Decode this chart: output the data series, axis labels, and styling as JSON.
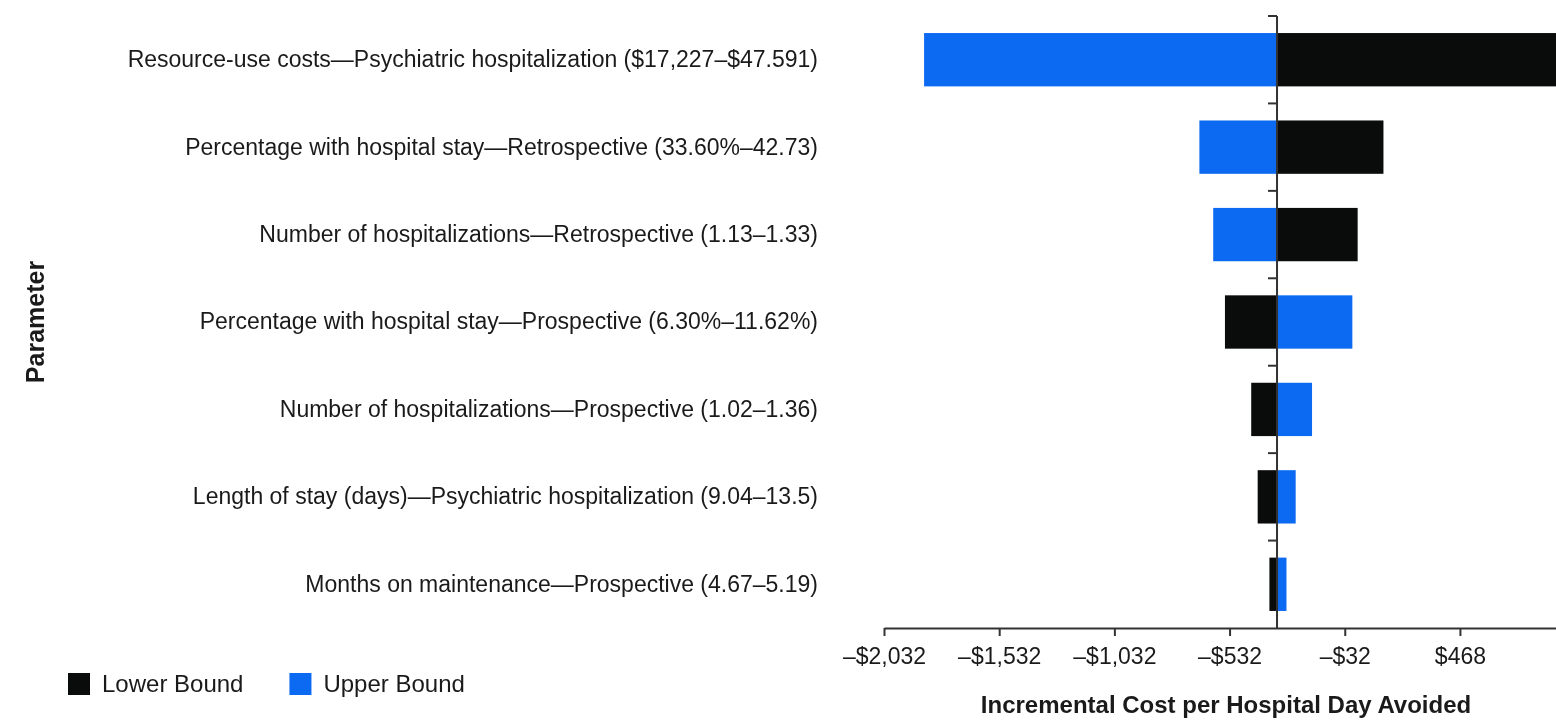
{
  "chart_data": {
    "type": "bar",
    "orientation": "horizontal",
    "categories": [
      "Resource-use costs—Psychiatric hospitalization ($17,227–$47.591)",
      "Percentage with hospital stay—Retrospective (33.60%–42.73)",
      "Number of hospitalizations—Retrospective (1.13–1.33)",
      "Percentage with hospital stay—Prospective (6.30%–11.62%)",
      "Number of hospitalizations—Prospective (1.02–1.36)",
      "Length of stay (days)—Psychiatric hospitalization (9.04–13.5)",
      "Months on maintenance—Prospective (4.67–5.19)"
    ],
    "series": [
      {
        "name": "Lower Bound",
        "color": "#0a0b0b",
        "base": [
          -326,
          -326,
          -326,
          -326,
          -326,
          -326,
          -326
        ],
        "values": [
          1211,
          462,
          350,
          -226,
          -112,
          -84,
          -33
        ]
      },
      {
        "name": "Upper Bound",
        "color": "#0b69f2",
        "base": [
          -326,
          -326,
          -326,
          -326,
          -326,
          -326,
          -326
        ],
        "values": [
          -1532,
          -337,
          -277,
          327,
          152,
          81,
          41
        ]
      }
    ],
    "ref_lines": [
      {
        "axis": "x",
        "value": -326,
        "color": "#333333"
      }
    ],
    "xlim": [
      -2032,
      885
    ],
    "xticks": [
      {
        "value": -2032,
        "label": "–$2,032"
      },
      {
        "value": -1532,
        "label": "–$1,532"
      },
      {
        "value": -1032,
        "label": "–$1,032"
      },
      {
        "value": -532,
        "label": "–$532"
      },
      {
        "value": -32,
        "label": "–$32"
      },
      {
        "value": 468,
        "label": "$468"
      }
    ],
    "xlabel": "Incremental Cost per Hospital Day Avoided",
    "ylabel": "Parameter",
    "legend": "bottom left"
  }
}
